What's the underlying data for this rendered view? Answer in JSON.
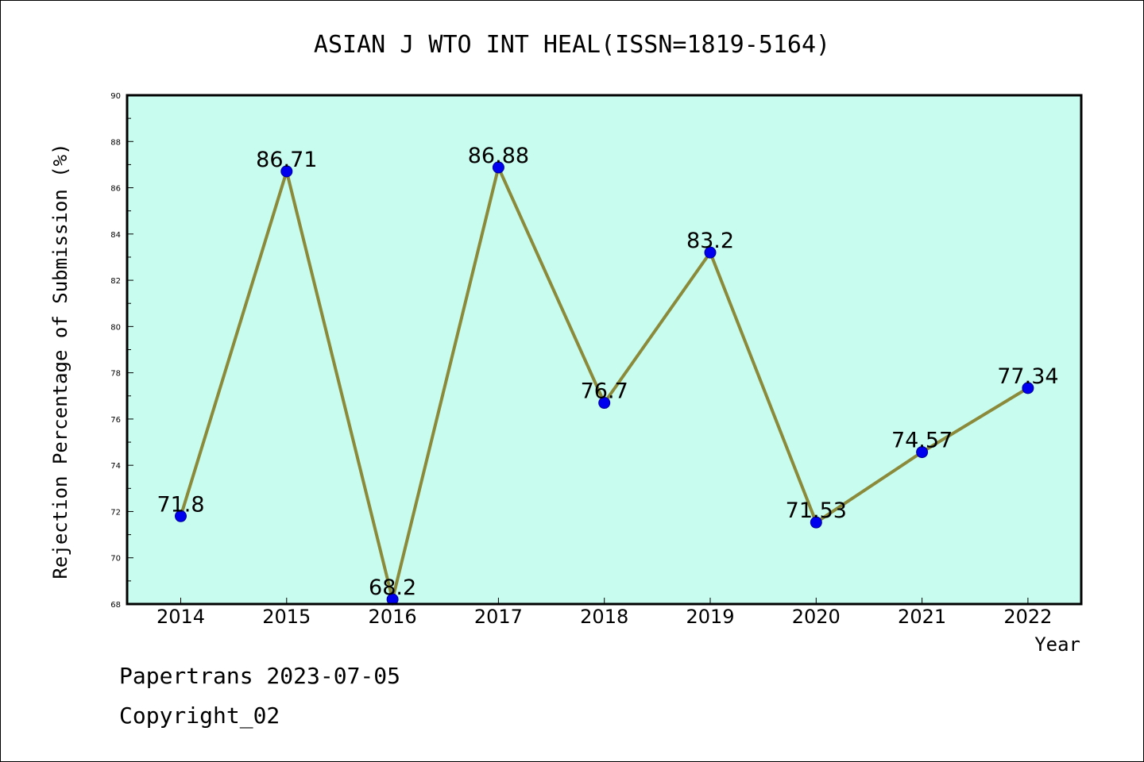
{
  "chart_data": {
    "type": "line",
    "title": "ASIAN J WTO INT HEAL(ISSN=1819-5164)",
    "xlabel": "Year",
    "ylabel": "Rejection Percentage of Submission (%)",
    "ylim": [
      68,
      90
    ],
    "yticks": [
      68,
      70,
      72,
      74,
      76,
      78,
      80,
      82,
      84,
      86,
      88,
      90
    ],
    "categories": [
      "2014",
      "2015",
      "2016",
      "2017",
      "2018",
      "2019",
      "2020",
      "2021",
      "2022"
    ],
    "values": [
      71.8,
      86.71,
      68.2,
      86.88,
      76.7,
      83.2,
      71.53,
      74.57,
      77.34
    ],
    "data_labels": [
      "71.8",
      "86.71",
      "68.2",
      "86.88",
      "76.7",
      "83.2",
      "71.53",
      "74.57",
      "77.34"
    ],
    "grid": false,
    "colors": {
      "plot_background": "#c8fcee",
      "line": "#8b8a3a",
      "marker": "#0000ee"
    }
  },
  "footer": {
    "line1": "Papertrans 2023-07-05",
    "line2": "Copyright_02"
  }
}
